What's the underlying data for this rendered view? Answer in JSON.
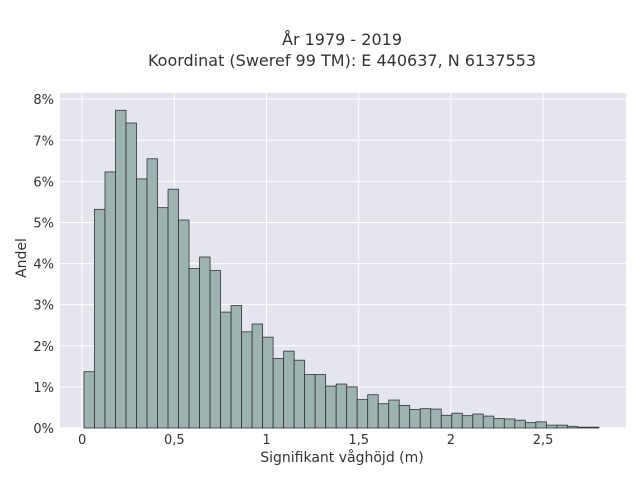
{
  "chart_data": {
    "type": "bar",
    "title": "År 1979 - 2019",
    "subtitle": "Koordinat (Sweref 99 TM): E 440637, N 6137553",
    "xlabel": "Signifikant våghöjd (m)",
    "ylabel": "Andel",
    "xlim": [
      -0.12,
      2.95
    ],
    "ylim": [
      0,
      8.15
    ],
    "x_ticks": [
      0,
      0.5,
      1,
      1.5,
      2,
      2.5
    ],
    "x_tick_labels": [
      "0",
      "0,5",
      "1",
      "1,5",
      "2",
      "2,5"
    ],
    "y_ticks": [
      0,
      1,
      2,
      3,
      4,
      5,
      6,
      7,
      8
    ],
    "y_tick_labels": [
      "0%",
      "1%",
      "2%",
      "3%",
      "4%",
      "5%",
      "6%",
      "7%",
      "8%"
    ],
    "bin_start": 0.01,
    "bin_width": 0.057,
    "values": [
      1.37,
      5.32,
      6.23,
      7.73,
      7.42,
      6.06,
      6.55,
      5.36,
      5.81,
      5.06,
      3.88,
      4.16,
      3.83,
      2.82,
      2.98,
      2.34,
      2.53,
      2.21,
      1.69,
      1.87,
      1.65,
      1.3,
      1.3,
      1.02,
      1.07,
      1.0,
      0.69,
      0.81,
      0.59,
      0.68,
      0.55,
      0.45,
      0.47,
      0.46,
      0.31,
      0.36,
      0.3,
      0.34,
      0.29,
      0.23,
      0.22,
      0.19,
      0.13,
      0.15,
      0.07,
      0.07,
      0.04,
      0.02,
      0.02
    ],
    "colors": {
      "bar_fill": "#9cb3b2",
      "bar_stroke": "#333333",
      "plot_bg": "#e5e5ef",
      "grid": "#ffffff",
      "text": "#333333"
    },
    "grid": true
  }
}
